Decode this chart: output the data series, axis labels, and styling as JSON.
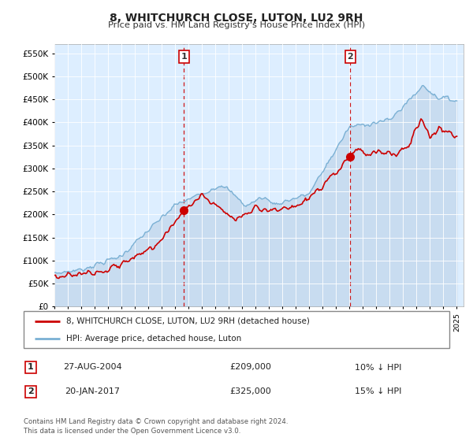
{
  "title": "8, WHITCHURCH CLOSE, LUTON, LU2 9RH",
  "subtitle": "Price paid vs. HM Land Registry's House Price Index (HPI)",
  "xlim_start": 1995.0,
  "xlim_end": 2025.5,
  "ylim": [
    0,
    570000
  ],
  "yticks": [
    0,
    50000,
    100000,
    150000,
    200000,
    250000,
    300000,
    350000,
    400000,
    450000,
    500000,
    550000
  ],
  "ytick_labels": [
    "£0",
    "£50K",
    "£100K",
    "£150K",
    "£200K",
    "£250K",
    "£300K",
    "£350K",
    "£400K",
    "£450K",
    "£500K",
    "£550K"
  ],
  "hpi_color": "#7ab0d4",
  "hpi_fill_color": "#c8dcf0",
  "price_color": "#cc0000",
  "marker1_x": 2004.65,
  "marker1_y": 209000,
  "marker2_x": 2017.05,
  "marker2_y": 325000,
  "vline1_x": 2004.65,
  "vline2_x": 2017.05,
  "legend_line1": "8, WHITCHURCH CLOSE, LUTON, LU2 9RH (detached house)",
  "legend_line2": "HPI: Average price, detached house, Luton",
  "label1_num": "1",
  "label1_date": "27-AUG-2004",
  "label1_price": "£209,000",
  "label1_hpi": "10% ↓ HPI",
  "label2_num": "2",
  "label2_date": "20-JAN-2017",
  "label2_price": "£325,000",
  "label2_hpi": "15% ↓ HPI",
  "footnote1": "Contains HM Land Registry data © Crown copyright and database right 2024.",
  "footnote2": "This data is licensed under the Open Government Licence v3.0.",
  "bg_color": "#ddeeff"
}
